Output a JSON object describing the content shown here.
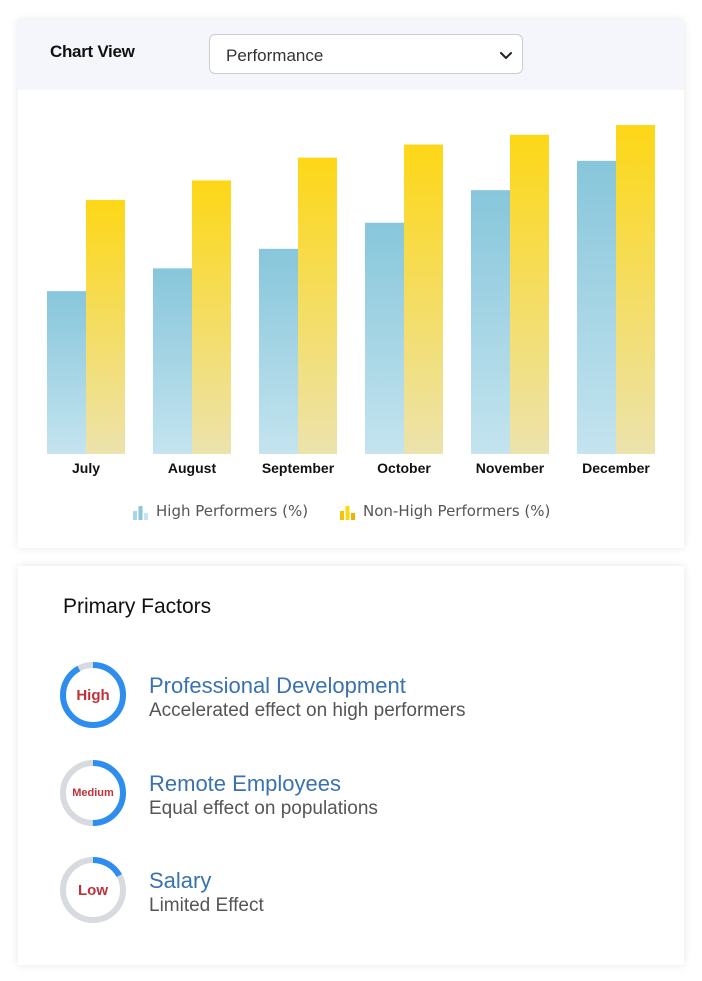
{
  "chart_view": {
    "label": "Chart View",
    "select_value": "Performance"
  },
  "chart_data": {
    "type": "bar",
    "categories": [
      "July",
      "August",
      "September",
      "October",
      "November",
      "December"
    ],
    "series": [
      {
        "name": "High Performers (%)",
        "values": [
          50,
          57,
          63,
          71,
          81,
          90
        ]
      },
      {
        "name": "Non-High Performers (%)",
        "values": [
          78,
          84,
          91,
          95,
          98,
          101
        ]
      }
    ],
    "ylim": [
      0,
      105
    ],
    "grid": false,
    "legend": "bottom-center",
    "colors": {
      "high_top": "#87c6db",
      "high_bottom": "#c4e4ef",
      "non_top": "#fdd716",
      "non_bottom": "#ece3ad"
    }
  },
  "factors": {
    "title": "Primary Factors",
    "items": [
      {
        "level": "High",
        "level_fraction": 0.92,
        "title": "Professional Development",
        "description": "Accelerated effect on high performers"
      },
      {
        "level": "Medium",
        "level_fraction": 0.5,
        "title": "Remote Employees",
        "description": "Equal effect on populations"
      },
      {
        "level": "Low",
        "level_fraction": 0.17,
        "title": "Salary",
        "description": "Limited Effect"
      }
    ],
    "ring_color": "#2e8ef0",
    "ring_track_color": "#d7dade",
    "level_text_color": "#c0323a"
  }
}
